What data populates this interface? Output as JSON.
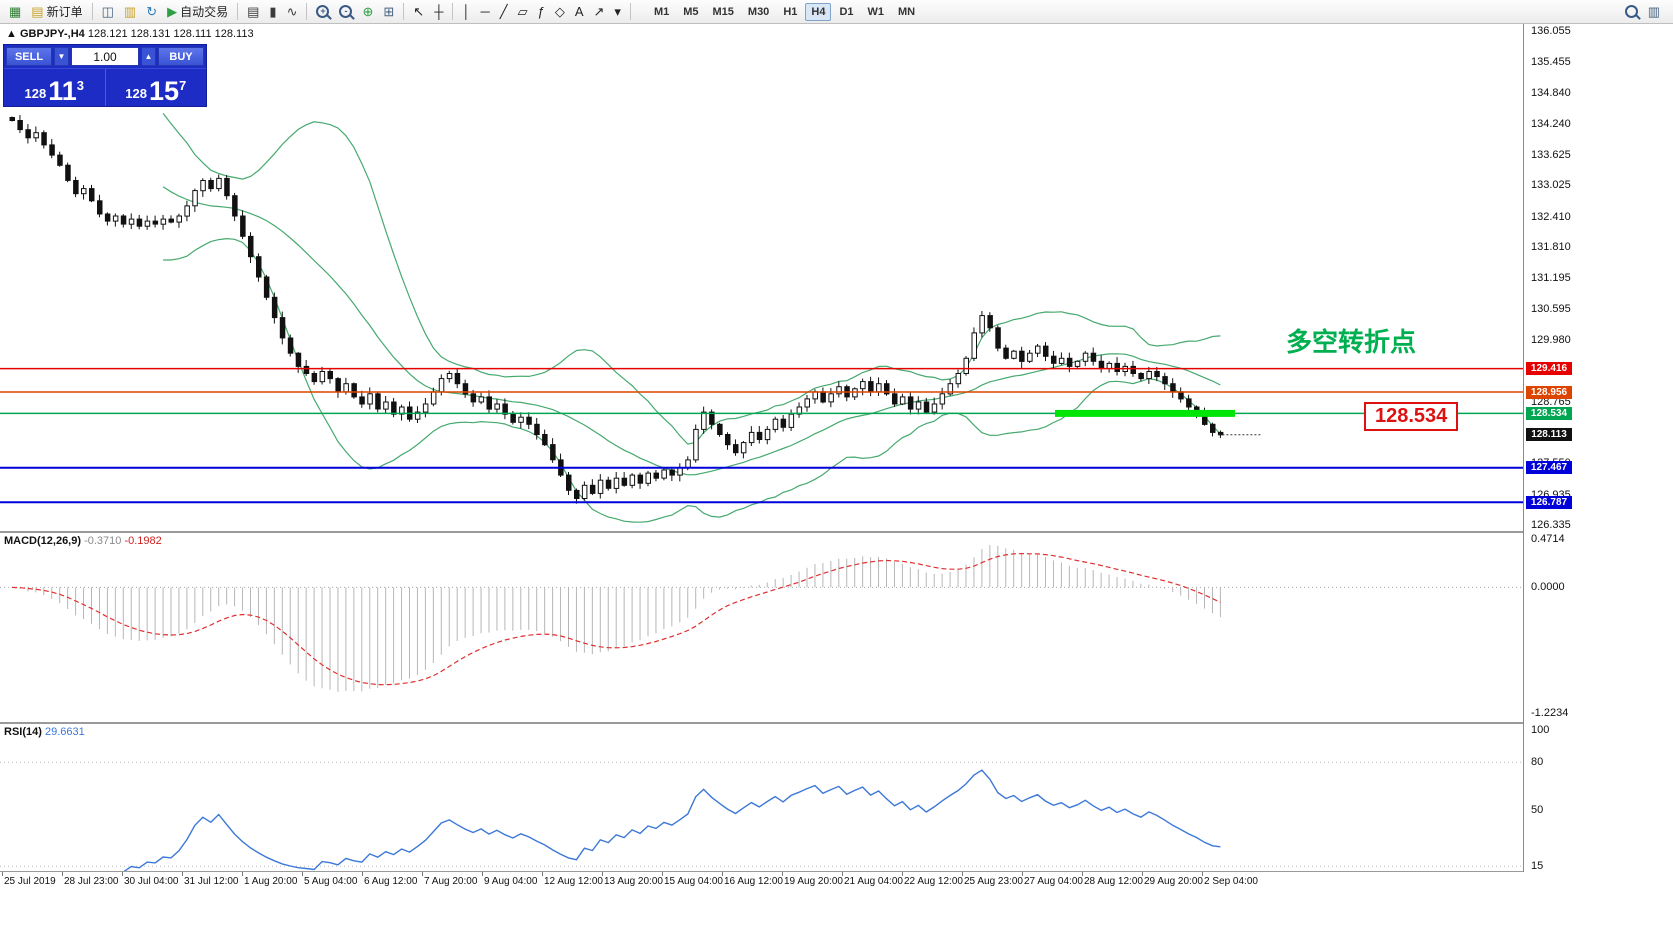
{
  "toolbar": {
    "items": [
      {
        "t": "btn",
        "name": "new-chart",
        "glyph": "▦",
        "color": "#2e7d32"
      },
      {
        "t": "btn",
        "name": "new-order",
        "glyph": "▤",
        "color": "#c9a227",
        "label": "新订单"
      },
      {
        "t": "sep"
      },
      {
        "t": "btn",
        "name": "charts",
        "glyph": "◫",
        "color": "#46627f"
      },
      {
        "t": "btn",
        "name": "profiles",
        "glyph": "▥",
        "color": "#c9a227"
      },
      {
        "t": "btn",
        "name": "refresh",
        "glyph": "↻",
        "color": "#2c7bb8"
      },
      {
        "t": "btn",
        "name": "autotrading",
        "glyph": "▶",
        "color": "#2e9e44",
        "label": "自动交易"
      },
      {
        "t": "sep"
      },
      {
        "t": "btn",
        "name": "bar-chart",
        "glyph": "▤",
        "color": "#3a3a3a"
      },
      {
        "t": "btn",
        "name": "candlestick-chart",
        "glyph": "▮",
        "color": "#3a3a3a"
      },
      {
        "t": "btn",
        "name": "line-chart",
        "glyph": "∿",
        "color": "#3a3a3a"
      },
      {
        "t": "sep"
      },
      {
        "t": "btn",
        "name": "zoom-in",
        "mag": "+"
      },
      {
        "t": "btn",
        "name": "zoom-out",
        "mag": "-"
      },
      {
        "t": "btn",
        "name": "indicators",
        "glyph": "⊕",
        "color": "#2e9e44"
      },
      {
        "t": "btn",
        "name": "tile-windows",
        "glyph": "⊞",
        "color": "#46627f"
      },
      {
        "t": "sep"
      },
      {
        "t": "btn",
        "name": "cursor",
        "glyph": "↖",
        "color": "#222222"
      },
      {
        "t": "btn",
        "name": "crosshair",
        "glyph": "┼",
        "color": "#222222"
      },
      {
        "t": "sep"
      },
      {
        "t": "btn",
        "name": "vertical-line",
        "glyph": "│",
        "color": "#222222"
      },
      {
        "t": "btn",
        "name": "horizontal-line",
        "glyph": "─",
        "color": "#222222"
      },
      {
        "t": "btn",
        "name": "trendline",
        "glyph": "╱",
        "color": "#222222"
      },
      {
        "t": "btn",
        "name": "channel",
        "glyph": "▱",
        "color": "#222222"
      },
      {
        "t": "btn",
        "name": "fibonacci",
        "glyph": "ƒ",
        "color": "#222222"
      },
      {
        "t": "btn",
        "name": "shapes",
        "glyph": "◇",
        "color": "#222222"
      },
      {
        "t": "btn",
        "name": "text-label",
        "glyph": "A",
        "color": "#222222"
      },
      {
        "t": "btn",
        "name": "arrow-tools",
        "glyph": "↗",
        "color": "#222222"
      },
      {
        "t": "btn",
        "name": "more-tools",
        "glyph": "▾",
        "color": "#222222"
      },
      {
        "t": "sep"
      }
    ],
    "timeframes": {
      "items": [
        "M1",
        "M5",
        "M15",
        "M30",
        "H1",
        "H4",
        "D1",
        "W1",
        "MN"
      ],
      "active": "H4"
    },
    "right": [
      {
        "t": "btn",
        "name": "search",
        "mag": ""
      },
      {
        "t": "btn",
        "name": "chart-list",
        "glyph": "▥",
        "color": "#46627f"
      }
    ]
  },
  "symbol_header": {
    "symbol": "GBPJPY-,H4",
    "ohlc": "128.121 128.131 128.111 128.113",
    "arrow": "▲"
  },
  "trade_panel": {
    "sell_label": "SELL",
    "buy_label": "BUY",
    "lot": "1.00",
    "sell_small": "128",
    "sell_big": "11",
    "sell_sup": "3",
    "buy_small": "128",
    "buy_big": "15",
    "buy_sup": "7",
    "spin_down": "▼",
    "spin_up": "▲"
  },
  "chart_data": {
    "type": "candlestick",
    "symbol": "GBPJPY-",
    "timeframe": "H4",
    "ylim": [
      126.22,
      136.2
    ],
    "closes": [
      134.3,
      134.12,
      133.96,
      134.06,
      133.82,
      133.62,
      133.42,
      133.12,
      132.86,
      132.96,
      132.72,
      132.46,
      132.32,
      132.42,
      132.26,
      132.36,
      132.22,
      132.32,
      132.26,
      132.36,
      132.3,
      132.42,
      132.62,
      132.92,
      133.12,
      132.96,
      133.16,
      132.82,
      132.42,
      132.02,
      131.62,
      131.22,
      130.82,
      130.42,
      130.02,
      129.72,
      129.46,
      129.32,
      129.16,
      129.36,
      129.22,
      128.96,
      129.12,
      128.86,
      128.72,
      128.92,
      128.62,
      128.76,
      128.52,
      128.66,
      128.42,
      128.56,
      128.72,
      128.96,
      129.22,
      129.32,
      129.12,
      128.92,
      128.76,
      128.86,
      128.62,
      128.72,
      128.52,
      128.36,
      128.46,
      128.32,
      128.12,
      127.92,
      127.62,
      127.32,
      127.02,
      126.86,
      127.12,
      126.96,
      127.22,
      127.06,
      127.26,
      127.12,
      127.32,
      127.16,
      127.36,
      127.26,
      127.42,
      127.32,
      127.46,
      127.62,
      128.22,
      128.56,
      128.32,
      128.12,
      127.92,
      127.76,
      127.96,
      128.16,
      128.02,
      128.22,
      128.42,
      128.26,
      128.52,
      128.66,
      128.82,
      128.96,
      128.76,
      128.92,
      129.06,
      128.86,
      129.02,
      129.16,
      128.96,
      129.12,
      128.92,
      128.72,
      128.86,
      128.62,
      128.76,
      128.56,
      128.72,
      128.92,
      129.12,
      129.32,
      129.62,
      130.12,
      130.46,
      130.22,
      129.82,
      129.62,
      129.76,
      129.56,
      129.72,
      129.86,
      129.66,
      129.52,
      129.62,
      129.46,
      129.56,
      129.72,
      129.56,
      129.42,
      129.52,
      129.36,
      129.46,
      129.32,
      129.22,
      129.36,
      129.26,
      129.12,
      128.96,
      128.82,
      128.66,
      128.52,
      128.32,
      128.16,
      128.113
    ],
    "price_axis": {
      "ticks": [
        "136.055",
        "135.455",
        "134.840",
        "134.240",
        "133.625",
        "133.025",
        "132.410",
        "131.810",
        "131.195",
        "130.595",
        "129.980",
        "129.380",
        "128.765",
        "128.150",
        "127.550",
        "126.935",
        "126.335"
      ]
    },
    "levels": [
      {
        "price": 129.416,
        "label": "129.416",
        "color": "#e60000",
        "w": 1.5
      },
      {
        "price": 128.956,
        "label": "128.956",
        "color": "#dd4400",
        "w": 1.5
      },
      {
        "price": 128.534,
        "label": "128.534",
        "color": "#00a651",
        "w": 1.5
      },
      {
        "price": 128.113,
        "label": "128.113",
        "color": "#111111",
        "w": 1,
        "line": "dash-short"
      },
      {
        "price": 127.467,
        "label": "127.467",
        "color": "#0000d8",
        "w": 2
      },
      {
        "price": 126.787,
        "label": "126.787",
        "color": "#0000d8",
        "w": 2
      }
    ],
    "highlight": {
      "price": 128.534,
      "x1_frac": 0.693,
      "x2_frac": 0.811,
      "color": "#00e408"
    },
    "annotation": {
      "text": "多空转折点",
      "color": "#00b050"
    },
    "callout": {
      "text": "128.534",
      "color": "#dd1111"
    },
    "indicators": {
      "bollinger": {
        "period": 20,
        "deviation": 2,
        "color": "#46a96e"
      },
      "macd": {
        "label": "MACD(12,26,9)",
        "value": "-0.3710",
        "signal": "-0.1982",
        "axis": [
          "0.4714",
          "0.0000",
          "-1.2234"
        ],
        "hist_color": "#b6b6b6",
        "signal_color": "#e03030"
      },
      "rsi": {
        "label": "RSI(14)",
        "value": "29.6631",
        "axis": [
          "100",
          "80",
          "50",
          "15"
        ],
        "levels": [
          80,
          15
        ],
        "color": "#3c78d8"
      }
    },
    "time_axis": [
      "25 Jul 2019",
      "28 Jul 23:00",
      "30 Jul 04:00",
      "31 Jul 12:00",
      "1 Aug 20:00",
      "5 Aug 04:00",
      "6 Aug 12:00",
      "7 Aug 20:00",
      "9 Aug 04:00",
      "12 Aug 12:00",
      "13 Aug 20:00",
      "15 Aug 04:00",
      "16 Aug 12:00",
      "19 Aug 20:00",
      "21 Aug 04:00",
      "22 Aug 12:00",
      "25 Aug 23:00",
      "27 Aug 04:00",
      "28 Aug 12:00",
      "29 Aug 20:00",
      "2 Sep 04:00"
    ]
  }
}
